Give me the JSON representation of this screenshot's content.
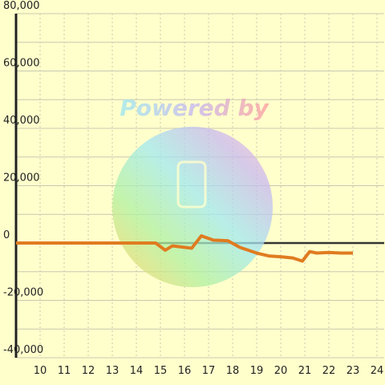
{
  "chart_data": {
    "type": "line",
    "watermark": "Powered by",
    "x": [
      9,
      14.8,
      15.2,
      15.5,
      16,
      16.3,
      16.7,
      17.2,
      17.8,
      18.3,
      19,
      19.5,
      20,
      20.5,
      20.9,
      21.2,
      21.5,
      22,
      22.5,
      23
    ],
    "series": [
      {
        "color": "#e07b20",
        "values": [
          0,
          0,
          -2500,
          -1000,
          -1500,
          -1800,
          2500,
          1000,
          800,
          -1500,
          -3500,
          -4500,
          -4800,
          -5200,
          -6300,
          -3000,
          -3500,
          -3300,
          -3500,
          -3500
        ]
      }
    ],
    "xlim": [
      9,
      24.3
    ],
    "xticks": [
      10,
      11,
      12,
      13,
      14,
      15,
      16,
      17,
      18,
      19,
      20,
      21,
      22,
      23,
      24
    ],
    "ylim": [
      -40000,
      80000
    ],
    "yticks": [
      {
        "value": 80000,
        "label": "80,000"
      },
      {
        "value": 60000,
        "label": "60,000"
      },
      {
        "value": 40000,
        "label": "40,000"
      },
      {
        "value": 20000,
        "label": "20,000"
      },
      0,
      {
        "value": -20000,
        "label": "-20,000"
      },
      {
        "value": -40000,
        "label": "-40,000"
      }
    ],
    "yminor": [
      70000,
      50000,
      30000,
      10000,
      -10000,
      -30000
    ],
    "grid": true
  }
}
